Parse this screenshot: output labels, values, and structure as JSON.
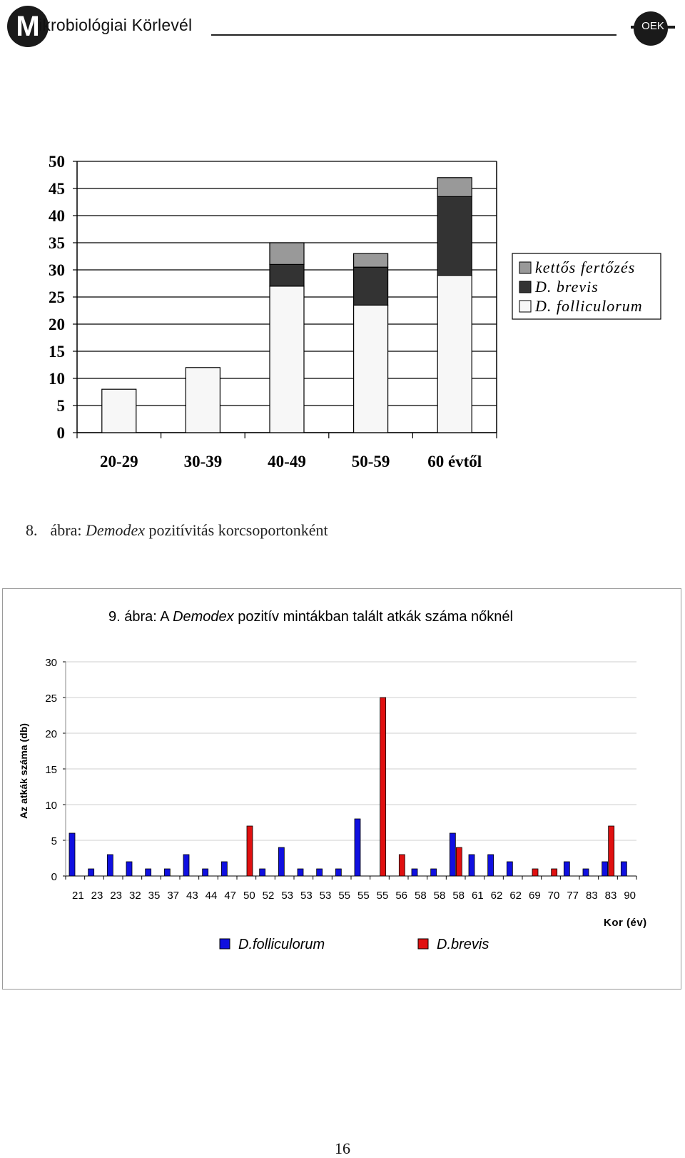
{
  "header": {
    "journal_name": "ikrobiológiai Körlevél",
    "logo_left_letter": "M",
    "logo_right_text": "OEK"
  },
  "figure8": {
    "caption_number": "8.",
    "caption_prefix": "ábra: ",
    "caption_italic": "Demodex",
    "caption_suffix": " pozitívitás korcsoportonként",
    "chart_data": {
      "type": "bar",
      "stacked": true,
      "categories": [
        "20-29",
        "30-39",
        "40-49",
        "50-59",
        "60 évtől"
      ],
      "series": [
        {
          "name": "D. folliculorum",
          "values": [
            8,
            12,
            27,
            23.5,
            29
          ],
          "color": "#f7f7f7"
        },
        {
          "name": "D. brevis",
          "values": [
            0,
            0,
            4,
            7,
            14.5
          ],
          "color": "#333333"
        },
        {
          "name": "kettős fertőzés",
          "values": [
            0,
            0,
            4,
            2.5,
            3.5
          ],
          "color": "#999999"
        }
      ],
      "legend_order": [
        "kettős fertőzés",
        "D. brevis",
        "D. folliculorum"
      ],
      "yticks": [
        0,
        5,
        10,
        15,
        20,
        25,
        30,
        35,
        40,
        45,
        50
      ],
      "ylim": [
        0,
        50
      ],
      "grid": true,
      "legend_position": "right"
    }
  },
  "figure9": {
    "title_prefix": "9. ábra: A ",
    "title_italic": "Demodex",
    "title_suffix": "  pozitív mintákban talált atkák száma nőknél",
    "chart_data": {
      "type": "bar",
      "categories": [
        "21",
        "23",
        "23",
        "32",
        "35",
        "37",
        "43",
        "44",
        "47",
        "50",
        "52",
        "53",
        "53",
        "53",
        "55",
        "55",
        "55",
        "56",
        "58",
        "58",
        "58",
        "61",
        "62",
        "62",
        "69",
        "70",
        "77",
        "83",
        "83",
        "90"
      ],
      "series": [
        {
          "name": "D.folliculorum",
          "color": "#1010e0",
          "values": [
            6,
            1,
            3,
            2,
            1,
            1,
            3,
            1,
            2,
            0,
            1,
            4,
            1,
            1,
            1,
            8,
            0,
            0,
            1,
            1,
            6,
            3,
            3,
            2,
            0,
            0,
            2,
            1,
            2,
            2
          ]
        },
        {
          "name": "D.brevis",
          "color": "#e01010",
          "values": [
            0,
            0,
            0,
            0,
            0,
            0,
            0,
            0,
            0,
            7,
            0,
            0,
            0,
            0,
            0,
            0,
            25,
            3,
            0,
            0,
            4,
            0,
            0,
            0,
            1,
            1,
            0,
            0,
            7,
            0
          ]
        }
      ],
      "ylabel": "Az atkák száma (db)",
      "xlabel": "Kor (év)",
      "yticks": [
        0,
        5,
        10,
        15,
        20,
        25,
        30
      ],
      "ylim": [
        0,
        30
      ],
      "grid": true,
      "legend_position": "bottom"
    }
  },
  "page_number": "16"
}
